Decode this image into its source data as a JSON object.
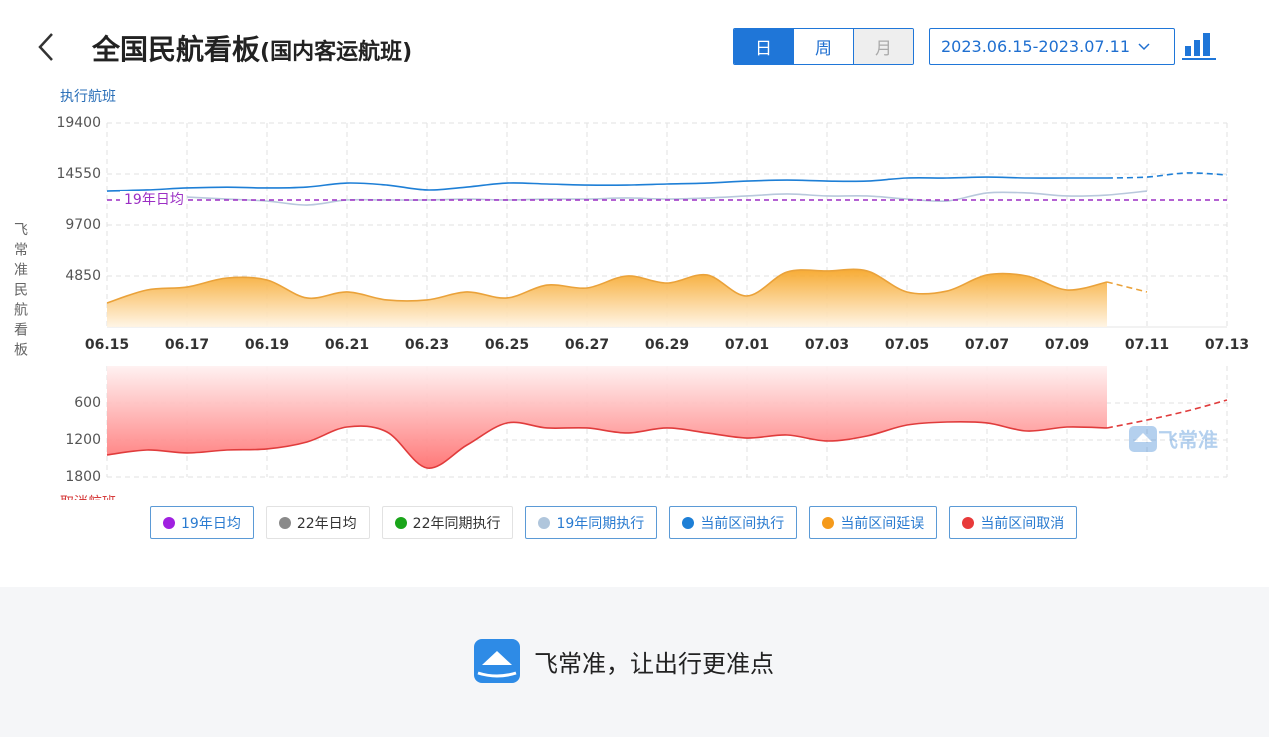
{
  "header": {
    "title": "全国民航看板",
    "subtitle": "(国内客运航班)"
  },
  "tabs": [
    {
      "label": "日",
      "state": "active"
    },
    {
      "label": "周",
      "state": "normal"
    },
    {
      "label": "月",
      "state": "disabled"
    }
  ],
  "date_range": "2023.06.15-2023.07.11",
  "side_label": "飞常准民航看板",
  "watermark": "飞常准",
  "chart_data": [
    {
      "type": "line",
      "axis_label": "执行航班",
      "categories": [
        "06.15",
        null,
        "06.17",
        null,
        "06.19",
        null,
        "06.21",
        null,
        "06.23",
        null,
        "06.25",
        null,
        "06.27",
        null,
        "06.29",
        null,
        "07.01",
        null,
        "07.03",
        null,
        "07.05",
        null,
        "07.07",
        null,
        "07.09",
        null,
        "07.11",
        null,
        "07.13"
      ],
      "ylim": [
        0,
        19400
      ],
      "yticks": [
        4850,
        9700,
        14550,
        19400
      ],
      "grid": true,
      "reference_lines": [
        {
          "name": "19年日均",
          "value": 12080,
          "color": "#9b2fc4"
        }
      ],
      "series": [
        {
          "name": "19年同期执行",
          "color": "#b8c8dc",
          "kind": "line",
          "values": [
            null,
            null,
            12360,
            12170,
            11980,
            11600,
            12080,
            12080,
            12080,
            12170,
            12080,
            12170,
            12170,
            12270,
            12170,
            12270,
            12460,
            12650,
            12460,
            12460,
            12170,
            11980,
            12750,
            12750,
            12460,
            12550,
            12930,
            null,
            null
          ]
        },
        {
          "name": "当前区间执行",
          "color": "#1e7fd6",
          "kind": "line",
          "values": [
            12930,
            13030,
            13220,
            13300,
            13220,
            13310,
            13690,
            13500,
            13030,
            13310,
            13690,
            13600,
            13500,
            13500,
            13600,
            13690,
            13880,
            13970,
            13880,
            13880,
            14170,
            14170,
            14260,
            14170,
            14170,
            14170,
            null,
            null,
            null
          ],
          "forecast": [
            null,
            null,
            null,
            null,
            null,
            null,
            null,
            null,
            null,
            null,
            null,
            null,
            null,
            null,
            null,
            null,
            null,
            null,
            null,
            null,
            null,
            null,
            null,
            null,
            null,
            14170,
            14260,
            14650,
            14460
          ]
        },
        {
          "name": "当前区间延误",
          "color": "#eaa23a",
          "kind": "area",
          "values": [
            2280,
            3520,
            3800,
            4660,
            4470,
            2760,
            3330,
            2570,
            2570,
            3330,
            2760,
            3990,
            3710,
            4850,
            4180,
            4950,
            2950,
            5230,
            5330,
            5330,
            3330,
            3420,
            4950,
            4850,
            3520,
            4280,
            null,
            null,
            null
          ],
          "forecast": [
            null,
            null,
            null,
            null,
            null,
            null,
            null,
            null,
            null,
            null,
            null,
            null,
            null,
            null,
            null,
            null,
            null,
            null,
            null,
            null,
            null,
            null,
            null,
            null,
            null,
            4280,
            3330,
            null,
            null
          ]
        }
      ]
    },
    {
      "type": "area",
      "axis_label": "取消航班",
      "inverted": true,
      "ylim": [
        0,
        1800
      ],
      "yticks": [
        600,
        1200,
        1800
      ],
      "grid": true,
      "series": [
        {
          "name": "当前区间取消",
          "color": "#e03c3c",
          "kind": "area",
          "values": [
            1443,
            1362,
            1410,
            1362,
            1345,
            1232,
            989,
            1070,
            1654,
            1281,
            924,
            1005,
            1005,
            1086,
            1005,
            1086,
            1168,
            1119,
            1216,
            1135,
            957,
            908,
            924,
            1054,
            989,
            1005,
            null,
            null,
            null
          ],
          "forecast": [
            null,
            null,
            null,
            null,
            null,
            null,
            null,
            null,
            null,
            null,
            null,
            null,
            null,
            null,
            null,
            null,
            null,
            null,
            null,
            null,
            null,
            null,
            null,
            null,
            null,
            1005,
            876,
            730,
            551
          ]
        }
      ]
    }
  ],
  "legend": [
    {
      "name": "19年日均",
      "color": "#a020e0",
      "active": true
    },
    {
      "name": "22年日均",
      "color": "#8a8a8a",
      "active": false
    },
    {
      "name": "22年同期执行",
      "color": "#1aa51a",
      "active": false
    },
    {
      "name": "19年同期执行",
      "color": "#b0c6dc",
      "active": true
    },
    {
      "name": "当前区间执行",
      "color": "#1e7fd6",
      "active": true
    },
    {
      "name": "当前区间延误",
      "color": "#f59a1b",
      "active": true
    },
    {
      "name": "当前区间取消",
      "color": "#e83a3a",
      "active": true
    }
  ],
  "footer": "飞常准，让出行更准点"
}
